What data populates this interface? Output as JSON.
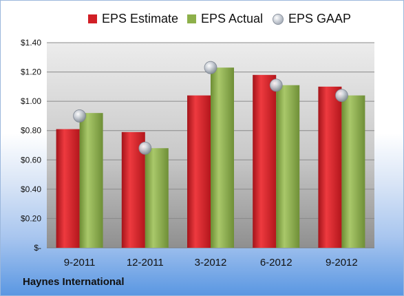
{
  "chart_data": {
    "type": "bar",
    "categories": [
      "9-2011",
      "12-2011",
      "3-2012",
      "6-2012",
      "9-2012"
    ],
    "series": [
      {
        "name": "EPS Estimate",
        "type": "bar",
        "color": "#d11f26",
        "values": [
          0.81,
          0.79,
          1.04,
          1.18,
          1.1
        ]
      },
      {
        "name": "EPS Actual",
        "type": "bar",
        "color": "#8db04a",
        "values": [
          0.92,
          0.68,
          1.23,
          1.11,
          1.04
        ]
      },
      {
        "name": "EPS GAAP",
        "type": "marker",
        "color": "#b8bec8",
        "values": [
          0.9,
          0.68,
          1.23,
          1.11,
          1.04
        ]
      }
    ],
    "y_ticks": [
      "$-",
      "$0.20",
      "$0.40",
      "$0.60",
      "$0.80",
      "$1.00",
      "$1.20",
      "$1.40"
    ],
    "ylim": [
      0,
      1.4
    ],
    "grid": true,
    "legend": "top"
  },
  "company_name": "Haynes International"
}
